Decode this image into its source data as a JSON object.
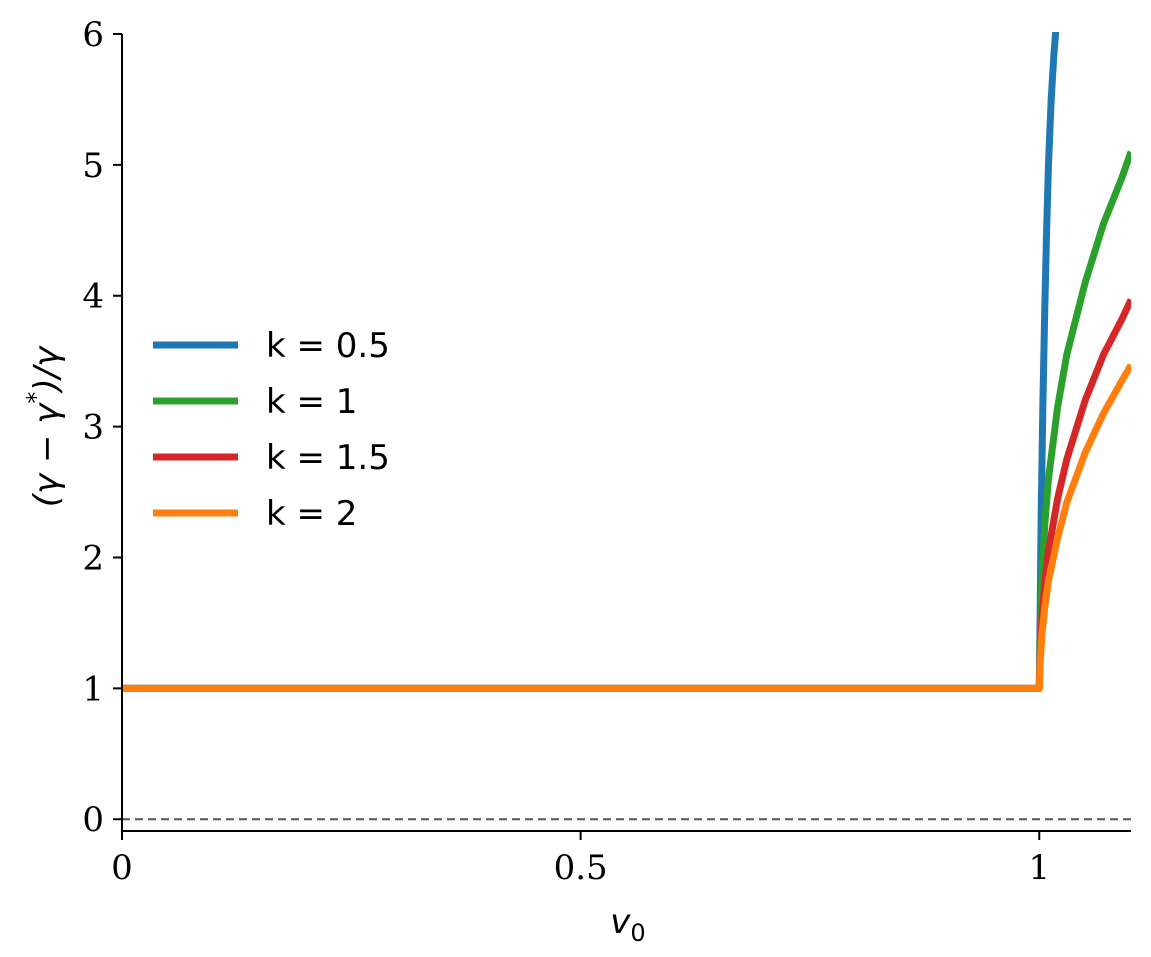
{
  "chart_data": {
    "type": "line",
    "xlabel": "v0",
    "ylabel": "(γ − γ*)/γ",
    "xlim": [
      0,
      1.1
    ],
    "ylim": [
      -0.09,
      6
    ],
    "xticks": [
      {
        "value": 0,
        "label": "0"
      },
      {
        "value": 0.5,
        "label": "0.5"
      },
      {
        "value": 1,
        "label": "1"
      }
    ],
    "yticks": [
      {
        "value": 0,
        "label": "0"
      },
      {
        "value": 1,
        "label": "1"
      },
      {
        "value": 2,
        "label": "2"
      },
      {
        "value": 3,
        "label": "3"
      },
      {
        "value": 4,
        "label": "4"
      },
      {
        "value": 5,
        "label": "5"
      },
      {
        "value": 6,
        "label": "6"
      }
    ],
    "reference_line": {
      "y": 0,
      "style": "dashed",
      "color": "#555555"
    },
    "grid": false,
    "legend_position": "center-left",
    "series": [
      {
        "name": "k = 0.5",
        "color": "#1f77b4",
        "x": [
          0,
          1.0,
          1.001,
          1.002,
          1.004,
          1.006,
          1.008,
          1.01,
          1.013,
          1.016,
          1.02
        ],
        "y": [
          1,
          1,
          1.6,
          2.3,
          3.2,
          3.9,
          4.5,
          5.0,
          5.5,
          5.85,
          6.2
        ]
      },
      {
        "name": "k = 1",
        "color": "#2ca02c",
        "x": [
          0,
          1.0,
          1.001,
          1.003,
          1.006,
          1.01,
          1.02,
          1.03,
          1.05,
          1.07,
          1.09,
          1.1
        ],
        "y": [
          1,
          1,
          1.35,
          1.85,
          2.25,
          2.6,
          3.15,
          3.55,
          4.1,
          4.55,
          4.9,
          5.1
        ]
      },
      {
        "name": "k = 1.5",
        "color": "#d62728",
        "x": [
          0,
          1.0,
          1.001,
          1.003,
          1.006,
          1.01,
          1.02,
          1.03,
          1.05,
          1.07,
          1.09,
          1.1
        ],
        "y": [
          1,
          1,
          1.25,
          1.55,
          1.8,
          2.05,
          2.45,
          2.75,
          3.2,
          3.55,
          3.82,
          3.97
        ]
      },
      {
        "name": "k = 2",
        "color": "#ff7f0e",
        "x": [
          0,
          1.0,
          1.001,
          1.003,
          1.006,
          1.01,
          1.02,
          1.03,
          1.05,
          1.07,
          1.09,
          1.1
        ],
        "y": [
          1,
          1,
          1.2,
          1.42,
          1.62,
          1.82,
          2.15,
          2.42,
          2.8,
          3.1,
          3.35,
          3.47
        ]
      }
    ]
  }
}
